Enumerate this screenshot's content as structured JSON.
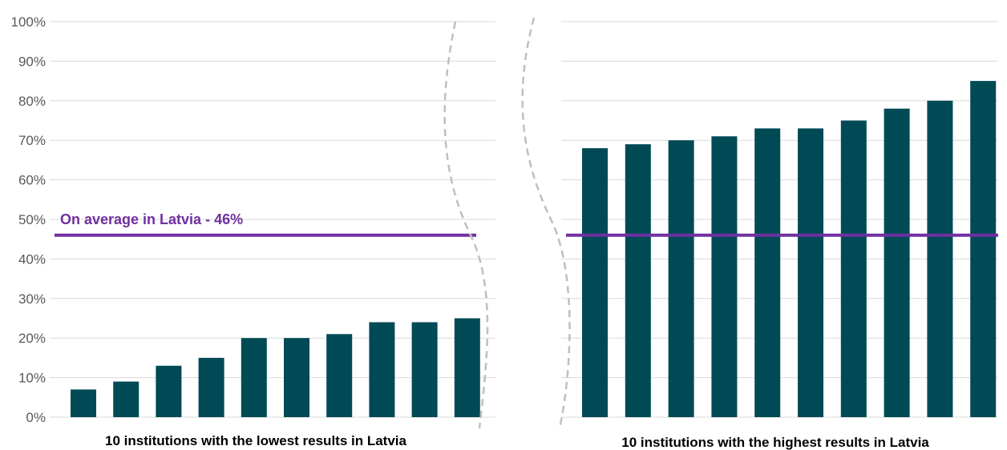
{
  "chart_data": {
    "type": "bar",
    "ylim": [
      0,
      100
    ],
    "y_ticks": [
      "0%",
      "10%",
      "20%",
      "30%",
      "40%",
      "50%",
      "60%",
      "70%",
      "80%",
      "90%",
      "100%"
    ],
    "grid": true,
    "groups": [
      {
        "label": "10 institutions with the lowest results in Latvia",
        "values": [
          7,
          9,
          13,
          15,
          20,
          20,
          21,
          24,
          24,
          25
        ]
      },
      {
        "label": "10 institutions with the highest results in Latvia",
        "values": [
          68,
          69,
          70,
          71,
          73,
          73,
          75,
          78,
          80,
          85
        ]
      }
    ],
    "reference_line": {
      "label": "On average in Latvia - 46%",
      "value": 46
    }
  },
  "colors": {
    "bar": "#004A56",
    "average_line": "#7030A0",
    "grid": "#D9D9D9",
    "break_line": "#BFBFBF"
  }
}
